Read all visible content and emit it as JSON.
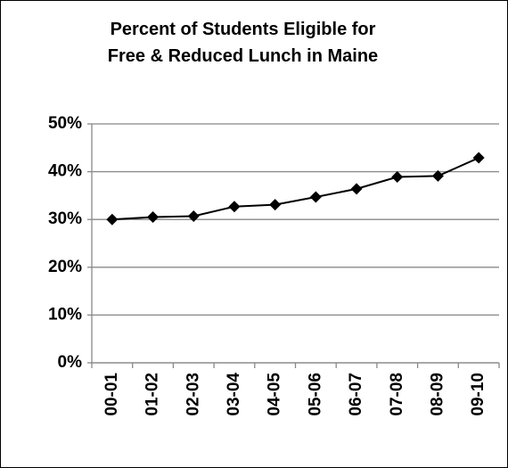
{
  "chart_data": {
    "type": "line",
    "title": "Percent of Students Eligible for Free & Reduced Lunch in Maine",
    "categories": [
      "00-01",
      "01-02",
      "02-03",
      "03-04",
      "04-05",
      "05-06",
      "06-07",
      "07-08",
      "08-09",
      "09-10"
    ],
    "values": [
      30.0,
      30.5,
      30.7,
      32.7,
      33.1,
      34.7,
      36.4,
      38.9,
      39.1,
      42.9
    ],
    "color": "#000000",
    "ylim": [
      0,
      50
    ],
    "yticks": [
      {
        "value": 0,
        "label": "0%"
      },
      {
        "value": 10,
        "label": "10%"
      },
      {
        "value": 20,
        "label": "20%"
      },
      {
        "value": 30,
        "label": "30%"
      },
      {
        "value": 40,
        "label": "40%"
      },
      {
        "value": 50,
        "label": "50%"
      }
    ],
    "grid": true
  }
}
